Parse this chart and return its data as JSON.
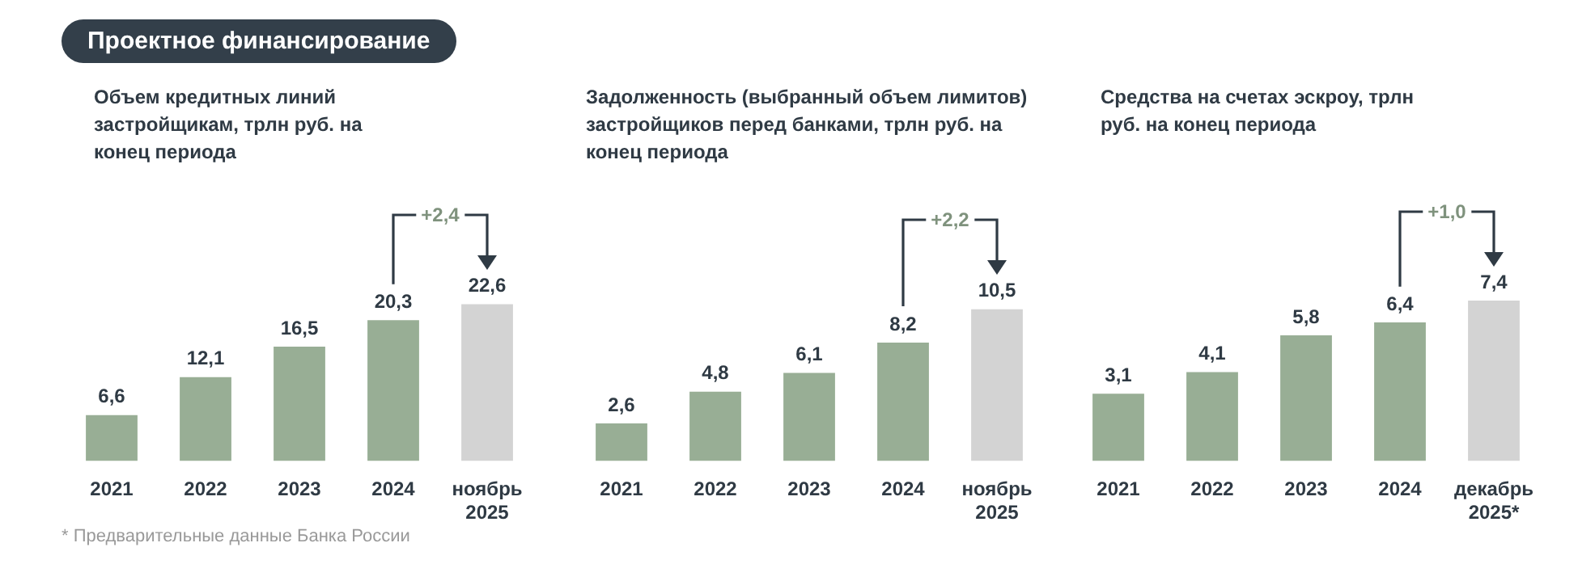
{
  "chart_data": [
    {
      "type": "bar",
      "title": "Проектное финансирование",
      "subtitle": "Объем кредитных линий застройщикам, трлн руб. на конец периода",
      "categories": [
        "2021",
        "2022",
        "2023",
        "2024",
        "ноябрь 2025"
      ],
      "values": [
        6.6,
        12.1,
        16.5,
        20.3,
        22.6
      ],
      "value_labels": [
        "6,6",
        "12,1",
        "16,5",
        "20,3",
        "22,6"
      ],
      "colors": [
        "#98ae95",
        "#98ae95",
        "#98ae95",
        "#98ae95",
        "#d3d3d3"
      ],
      "annotations": [
        "+2,4"
      ]
    },
    {
      "type": "bar",
      "title": "Задолженность (выбранный объем лимитов) застройщиков перед банками, трлн руб. на конец периода",
      "categories": [
        "2021",
        "2022",
        "2023",
        "2024",
        "ноябрь 2025"
      ],
      "values": [
        2.6,
        4.8,
        6.1,
        8.2,
        10.5
      ],
      "value_labels": [
        "2,6",
        "4,8",
        "6,1",
        "8,2",
        "10,5"
      ],
      "colors": [
        "#98ae95",
        "#98ae95",
        "#98ae95",
        "#98ae95",
        "#d3d3d3"
      ],
      "annotations": [
        "+2,2"
      ]
    },
    {
      "type": "bar",
      "title": "Средства на счетах эскроу, трлн руб. на конец периода",
      "categories": [
        "2021",
        "2022",
        "2023",
        "2024",
        "декабрь 2025*"
      ],
      "values": [
        3.1,
        4.1,
        5.8,
        6.4,
        7.4
      ],
      "value_labels": [
        "3,1",
        "4,1",
        "5,8",
        "6,4",
        "7,4"
      ],
      "colors": [
        "#98ae95",
        "#98ae95",
        "#98ae95",
        "#98ae95",
        "#d3d3d3"
      ],
      "annotations": [
        "+1,0",
        "* Предварительные данные Банка России"
      ]
    }
  ]
}
